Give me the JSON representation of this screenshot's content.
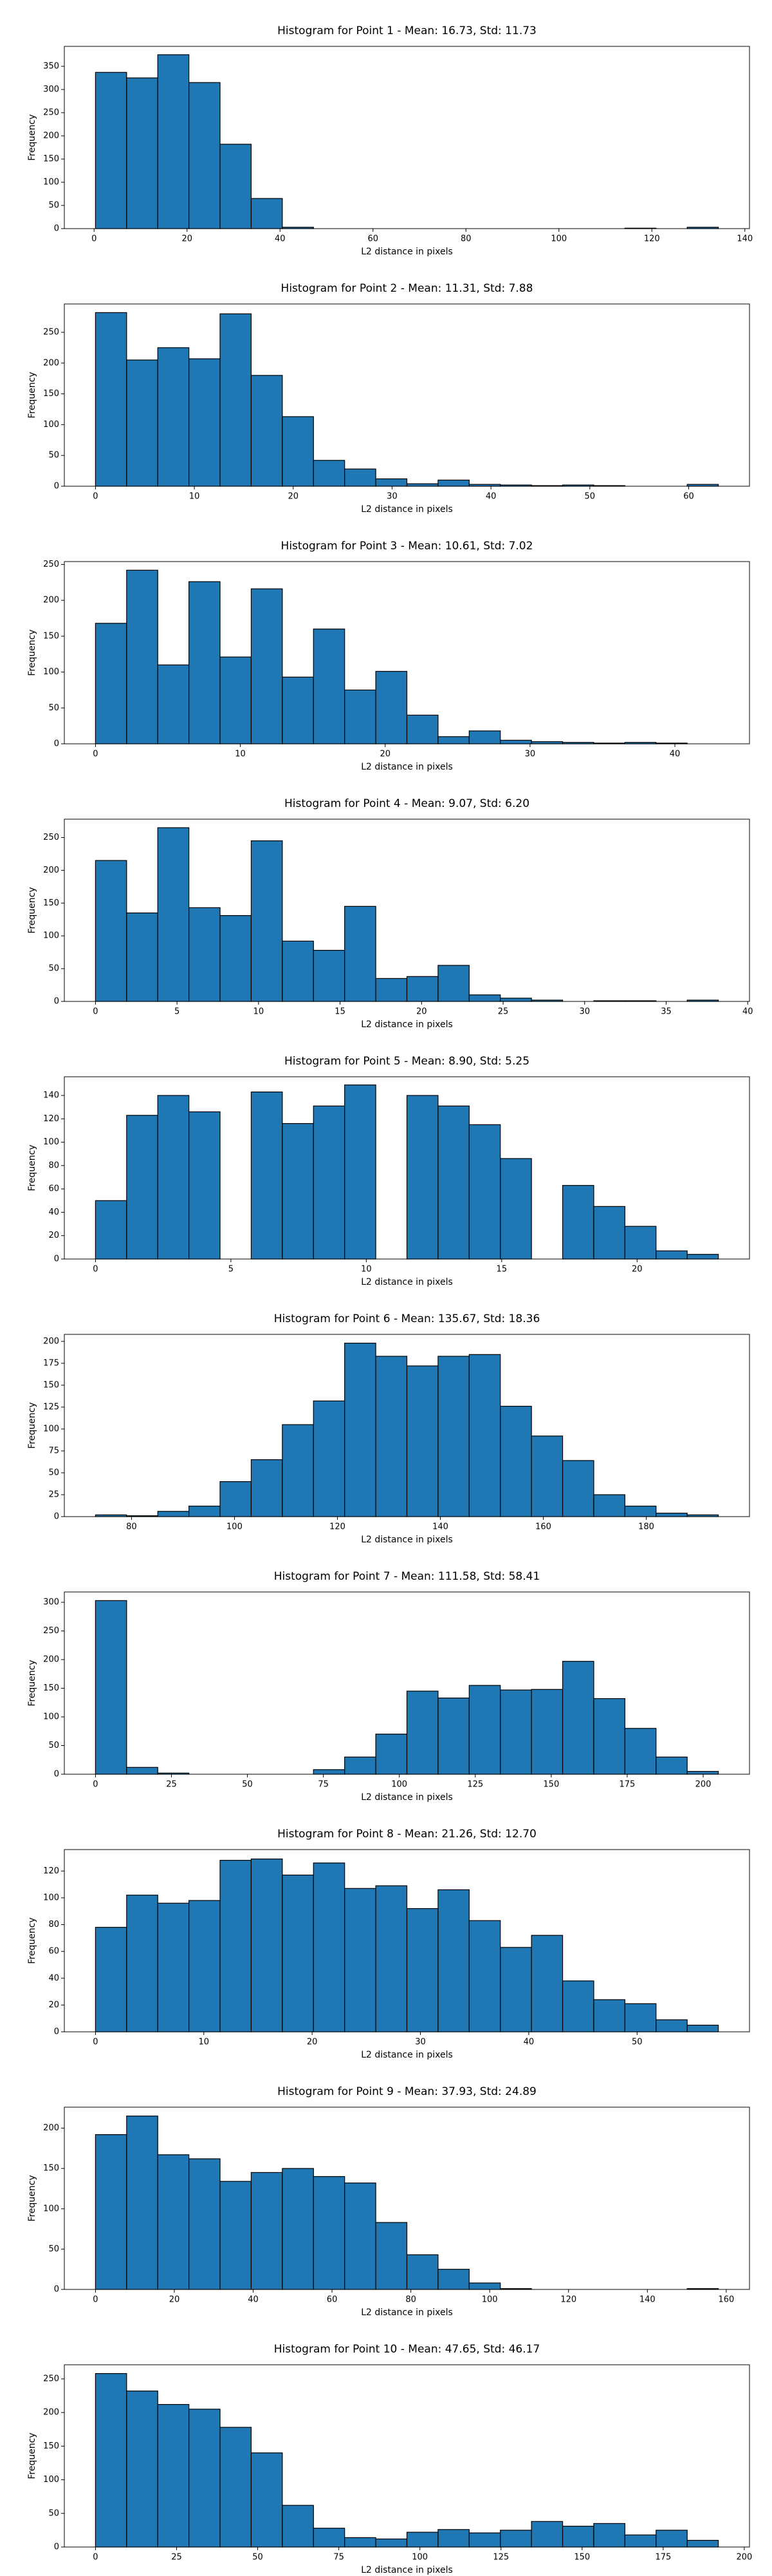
{
  "chart_data": [
    {
      "type": "histogram",
      "title": "Histogram for Point 1 - Mean: 16.73, Std: 11.73",
      "x_label": "L2 distance in pixels",
      "y_label": "Frequency",
      "color": "#1f77b4",
      "bins": [
        0.3,
        7.0,
        13.7,
        20.4,
        27.1,
        33.8,
        40.5,
        47.2,
        53.9,
        60.6,
        67.3,
        74.0,
        80.7,
        87.4,
        94.1,
        100.8,
        107.5,
        114.2,
        120.9,
        127.6,
        134.3
      ],
      "counts": [
        337,
        325,
        375,
        315,
        182,
        65,
        3,
        0,
        0,
        0,
        0,
        0,
        0,
        0,
        0,
        0,
        0,
        1,
        0,
        3
      ],
      "xlim": [
        -6.4,
        141
      ],
      "ylim": [
        0,
        393
      ],
      "xticks": [
        0,
        20,
        40,
        60,
        80,
        100,
        120,
        140
      ],
      "yticks": [
        0,
        50,
        100,
        150,
        200,
        250,
        300,
        350
      ]
    },
    {
      "type": "histogram",
      "title": "Histogram for Point 2 - Mean: 11.31, Std: 7.88",
      "x_label": "L2 distance in pixels",
      "y_label": "Frequency",
      "color": "#1f77b4",
      "bins": [
        0,
        3.15,
        6.3,
        9.45,
        12.6,
        15.75,
        18.9,
        22.05,
        25.2,
        28.35,
        31.5,
        34.65,
        37.8,
        40.95,
        44.1,
        47.25,
        50.4,
        53.55,
        56.7,
        59.85,
        63
      ],
      "counts": [
        282,
        205,
        225,
        207,
        280,
        180,
        113,
        42,
        28,
        12,
        4,
        10,
        3,
        2,
        1,
        2,
        1,
        0,
        0,
        3
      ],
      "xlim": [
        -3.15,
        66.15
      ],
      "ylim": [
        0,
        296
      ],
      "xticks": [
        0,
        10,
        20,
        30,
        40,
        50,
        60
      ],
      "yticks": [
        0,
        50,
        100,
        150,
        200,
        250
      ]
    },
    {
      "type": "histogram",
      "title": "Histogram for Point 3 - Mean: 10.61, Std: 7.02",
      "x_label": "L2 distance in pixels",
      "y_label": "Frequency",
      "color": "#1f77b4",
      "bins": [
        0,
        2.15,
        4.3,
        6.45,
        8.6,
        10.75,
        12.9,
        15.05,
        17.2,
        19.35,
        21.5,
        23.65,
        25.8,
        27.95,
        30.1,
        32.25,
        34.4,
        36.55,
        38.7,
        40.85,
        43
      ],
      "counts": [
        168,
        242,
        110,
        226,
        121,
        216,
        93,
        160,
        75,
        101,
        40,
        10,
        18,
        5,
        3,
        2,
        1,
        2,
        1,
        0
      ],
      "xlim": [
        -2.15,
        45.15
      ],
      "ylim": [
        0,
        254
      ],
      "xticks": [
        0,
        10,
        20,
        30,
        40
      ],
      "yticks": [
        0,
        50,
        100,
        150,
        200,
        250
      ]
    },
    {
      "type": "histogram",
      "title": "Histogram for Point 4 - Mean: 9.07, Std: 6.20",
      "x_label": "L2 distance in pixels",
      "y_label": "Frequency",
      "color": "#1f77b4",
      "bins": [
        0,
        1.91,
        3.82,
        5.73,
        7.64,
        9.55,
        11.46,
        13.37,
        15.28,
        17.19,
        19.1,
        21.01,
        22.92,
        24.83,
        26.74,
        28.65,
        30.56,
        32.47,
        34.38,
        36.29,
        38.2
      ],
      "counts": [
        215,
        135,
        265,
        143,
        131,
        245,
        92,
        78,
        145,
        35,
        38,
        55,
        10,
        5,
        2,
        0,
        1,
        1,
        0,
        2
      ],
      "xlim": [
        -1.91,
        40.11
      ],
      "ylim": [
        0,
        278
      ],
      "xticks": [
        0,
        5,
        10,
        15,
        20,
        25,
        30,
        35,
        40
      ],
      "yticks": [
        0,
        50,
        100,
        150,
        200,
        250
      ]
    },
    {
      "type": "histogram",
      "title": "Histogram for Point 5 - Mean: 8.90, Std: 5.25",
      "x_label": "L2 distance in pixels",
      "y_label": "Frequency",
      "color": "#1f77b4",
      "bins": [
        0,
        1.15,
        2.3,
        3.45,
        4.6,
        5.75,
        6.9,
        8.05,
        9.2,
        10.35,
        11.5,
        12.65,
        13.8,
        14.95,
        16.1,
        17.25,
        18.4,
        19.55,
        20.7,
        21.85,
        23
      ],
      "counts": [
        50,
        123,
        140,
        126,
        0,
        143,
        116,
        131,
        149,
        0,
        140,
        131,
        115,
        86,
        0,
        63,
        45,
        28,
        7,
        4
      ],
      "xlim": [
        -1.15,
        24.15
      ],
      "ylim": [
        0,
        156
      ],
      "xticks": [
        0,
        5,
        10,
        15,
        20
      ],
      "yticks": [
        0,
        20,
        40,
        60,
        80,
        100,
        120,
        140
      ]
    },
    {
      "type": "histogram",
      "title": "Histogram for Point 6 - Mean: 135.67, Std: 18.36",
      "x_label": "L2 distance in pixels",
      "y_label": "Frequency",
      "color": "#1f77b4",
      "bins": [
        73,
        79.05,
        85.1,
        91.15,
        97.2,
        103.25,
        109.3,
        115.35,
        121.4,
        127.45,
        133.5,
        139.55,
        145.6,
        151.65,
        157.7,
        163.75,
        169.8,
        175.85,
        181.9,
        187.95,
        194
      ],
      "counts": [
        2,
        1,
        6,
        12,
        40,
        65,
        105,
        132,
        198,
        183,
        172,
        183,
        185,
        126,
        92,
        64,
        25,
        12,
        4,
        2
      ],
      "xlim": [
        66.95,
        200.05
      ],
      "ylim": [
        0,
        208
      ],
      "xticks": [
        80,
        100,
        120,
        140,
        160,
        180
      ],
      "yticks": [
        0,
        25,
        50,
        75,
        100,
        125,
        150,
        175,
        200
      ]
    },
    {
      "type": "histogram",
      "title": "Histogram for Point 7 - Mean: 111.58, Std: 58.41",
      "x_label": "L2 distance in pixels",
      "y_label": "Frequency",
      "color": "#1f77b4",
      "bins": [
        0,
        10.25,
        20.5,
        30.75,
        41,
        51.25,
        61.5,
        71.75,
        82,
        92.25,
        102.5,
        112.75,
        123,
        133.25,
        143.5,
        153.75,
        164,
        174.25,
        184.5,
        194.75,
        205
      ],
      "counts": [
        303,
        12,
        2,
        0,
        0,
        0,
        0,
        8,
        30,
        70,
        145,
        133,
        155,
        147,
        148,
        197,
        132,
        80,
        30,
        5
      ],
      "xlim": [
        -10.25,
        215.25
      ],
      "ylim": [
        0,
        318
      ],
      "xticks": [
        0,
        25,
        50,
        75,
        100,
        125,
        150,
        175,
        200
      ],
      "yticks": [
        0,
        50,
        100,
        150,
        200,
        250,
        300
      ]
    },
    {
      "type": "histogram",
      "title": "Histogram for Point 8 - Mean: 21.26, Std: 12.70",
      "x_label": "L2 distance in pixels",
      "y_label": "Frequency",
      "color": "#1f77b4",
      "bins": [
        0,
        2.875,
        5.75,
        8.625,
        11.5,
        14.375,
        17.25,
        20.125,
        23,
        25.875,
        28.75,
        31.625,
        34.5,
        37.375,
        40.25,
        43.125,
        46,
        48.875,
        51.75,
        54.625,
        57.5
      ],
      "counts": [
        78,
        102,
        96,
        98,
        128,
        129,
        117,
        126,
        107,
        109,
        92,
        106,
        83,
        63,
        72,
        38,
        24,
        21,
        9,
        5
      ],
      "xlim": [
        -2.875,
        60.375
      ],
      "ylim": [
        0,
        136
      ],
      "xticks": [
        0,
        10,
        20,
        30,
        40,
        50
      ],
      "yticks": [
        0,
        20,
        40,
        60,
        80,
        100,
        120
      ]
    },
    {
      "type": "histogram",
      "title": "Histogram for Point 9 - Mean: 37.93, Std: 24.89",
      "x_label": "L2 distance in pixels",
      "y_label": "Frequency",
      "color": "#1f77b4",
      "bins": [
        0,
        7.9,
        15.8,
        23.7,
        31.6,
        39.5,
        47.4,
        55.3,
        63.2,
        71.1,
        79,
        86.9,
        94.8,
        102.7,
        110.6,
        118.5,
        126.4,
        134.3,
        142.2,
        150.1,
        158
      ],
      "counts": [
        192,
        215,
        167,
        162,
        134,
        145,
        150,
        140,
        132,
        83,
        43,
        25,
        8,
        1,
        0,
        0,
        0,
        0,
        0,
        1
      ],
      "xlim": [
        -7.9,
        165.9
      ],
      "ylim": [
        0,
        226
      ],
      "xticks": [
        0,
        20,
        40,
        60,
        80,
        100,
        120,
        140,
        160
      ],
      "yticks": [
        0,
        50,
        100,
        150,
        200
      ]
    },
    {
      "type": "histogram",
      "title": "Histogram for Point 10 - Mean: 47.65, Std: 46.17",
      "x_label": "L2 distance in pixels",
      "y_label": "Frequency",
      "color": "#1f77b4",
      "bins": [
        0,
        9.6,
        19.2,
        28.8,
        38.4,
        48,
        57.6,
        67.2,
        76.8,
        86.4,
        96,
        105.6,
        115.2,
        124.8,
        134.4,
        144,
        153.6,
        163.2,
        172.8,
        182.4,
        192
      ],
      "counts": [
        258,
        232,
        212,
        205,
        178,
        140,
        62,
        28,
        14,
        12,
        22,
        26,
        21,
        25,
        38,
        31,
        35,
        18,
        25,
        10
      ],
      "xlim": [
        -9.6,
        201.6
      ],
      "ylim": [
        0,
        271
      ],
      "xticks": [
        0,
        25,
        50,
        75,
        100,
        125,
        150,
        175,
        200
      ],
      "yticks": [
        0,
        50,
        100,
        150,
        200,
        250
      ]
    }
  ]
}
